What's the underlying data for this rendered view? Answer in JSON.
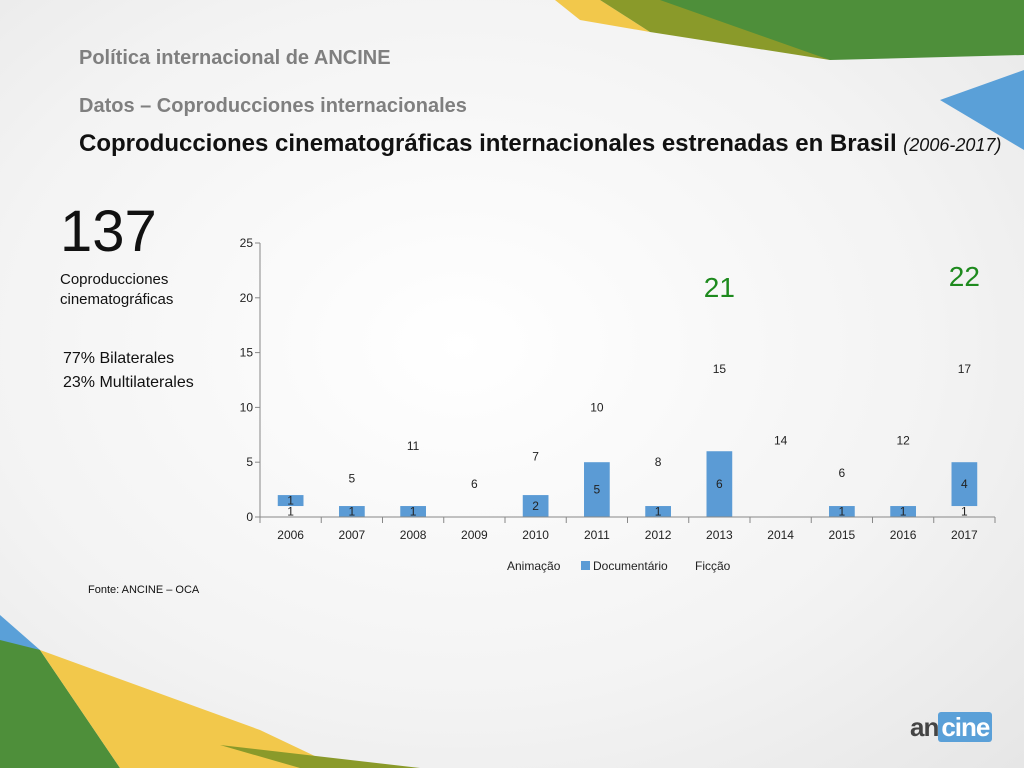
{
  "slide": {
    "section_title": "Política internacional de ANCINE",
    "subtitle": "Datos – Coproducciones internacionales",
    "title": "Coproducciones cinematográficas internacionales estrenadas en Brasil",
    "title_period": "(2006-2017)",
    "total_value": "137",
    "total_label": "Coproducciones cinematográficas",
    "bilateral": "77% Bilaterales",
    "multilateral": "23% Multilaterales",
    "source": "Fonte: ANCINE – OCA",
    "logo_text": "ancine"
  },
  "colors": {
    "documentario": "#5b9bd5",
    "highlight_green": "#1e8a1e",
    "deco_green": "#4e8f3a",
    "deco_olive": "#8a9a2a",
    "deco_yellow": "#f2c84b",
    "deco_blue": "#5aa0d8"
  },
  "chart_data": {
    "type": "bar",
    "categories": [
      "2006",
      "2007",
      "2008",
      "2009",
      "2010",
      "2011",
      "2012",
      "2013",
      "2014",
      "2015",
      "2016",
      "2017"
    ],
    "category_labels": [
      "2006",
      "2007",
      "2008",
      "2009",
      "2010",
      "2011",
      "2012",
      "2013",
      "2014",
      "2015",
      "2016",
      "2017"
    ],
    "series": [
      {
        "name": "Animação",
        "legend_label": "Animação",
        "values": [
          1,
          0,
          0,
          0,
          0,
          0,
          0,
          0,
          0,
          0,
          0,
          1
        ],
        "labels": [
          "1",
          "",
          "",
          "",
          "",
          "",
          "",
          "",
          "",
          "",
          "",
          "1"
        ],
        "visible": false
      },
      {
        "name": "Documentário",
        "legend_label": "Documentário",
        "values": [
          1,
          1,
          1,
          0,
          2,
          5,
          1,
          6,
          0,
          1,
          1,
          4
        ],
        "labels": [
          "1",
          "1",
          "1",
          "",
          "2",
          "5",
          "1",
          "6",
          "",
          "1",
          "1",
          "4"
        ],
        "visible": true
      },
      {
        "name": "Ficção",
        "legend_label": "Ficção",
        "values": [
          0,
          5,
          11,
          6,
          7,
          10,
          8,
          15,
          14,
          6,
          12,
          17
        ],
        "labels": [
          "",
          "5",
          "11",
          "6",
          "7",
          "10",
          "8",
          "15",
          "14",
          "6",
          "12",
          "17"
        ],
        "visible": false
      }
    ],
    "y_ticks": [
      0,
      5,
      10,
      15,
      20,
      25
    ],
    "y_tick_labels": [
      "0",
      "5",
      "10",
      "15",
      "20",
      "25"
    ],
    "ylim": [
      0,
      25
    ],
    "annotations": [
      {
        "category": "2013",
        "value": 21,
        "text": "21"
      },
      {
        "category": "2017",
        "value": 22,
        "text": "22"
      }
    ],
    "legend_position": "bottom",
    "grid": false
  }
}
